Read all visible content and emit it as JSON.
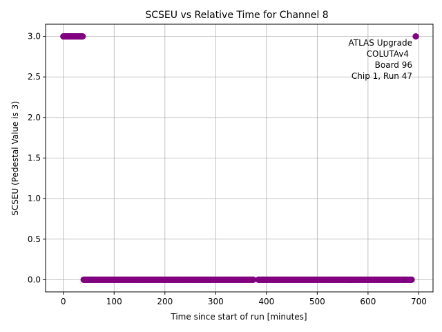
{
  "chart_data": {
    "type": "scatter",
    "title": "SCSEU vs Relative Time for Channel 8",
    "xlabel": "Time since start of run [minutes]",
    "ylabel": "SCSEU (Pedestal Value is 3)",
    "xlim": [
      -35,
      728
    ],
    "ylim": [
      -0.15,
      3.15
    ],
    "x_ticks": [
      0,
      100,
      200,
      300,
      400,
      500,
      600,
      700
    ],
    "y_ticks": [
      0.0,
      0.5,
      1.0,
      1.5,
      2.0,
      2.5,
      3.0
    ],
    "x_tick_labels": [
      "0",
      "100",
      "200",
      "300",
      "400",
      "500",
      "600",
      "700"
    ],
    "y_tick_labels": [
      "0.0",
      "0.5",
      "1.0",
      "1.5",
      "2.0",
      "2.5",
      "3.0"
    ],
    "grid": true,
    "marker_color": "#800080",
    "annotation_lines": [
      "ATLAS Upgrade",
      "COLUTAv4",
      "Board 96",
      "Chip 1, Run 47"
    ],
    "annotation_position": "top-right",
    "series": [
      {
        "segments": [
          {
            "x_start": 0,
            "x_end": 38,
            "step": 2,
            "y": 3
          },
          {
            "x_start": 40,
            "x_end": 374,
            "step": 2,
            "y": 0
          },
          {
            "x_start": 384,
            "x_end": 686,
            "step": 2,
            "y": 0
          },
          {
            "x_start": 694,
            "x_end": 694,
            "step": 1,
            "y": 3
          }
        ]
      }
    ]
  }
}
